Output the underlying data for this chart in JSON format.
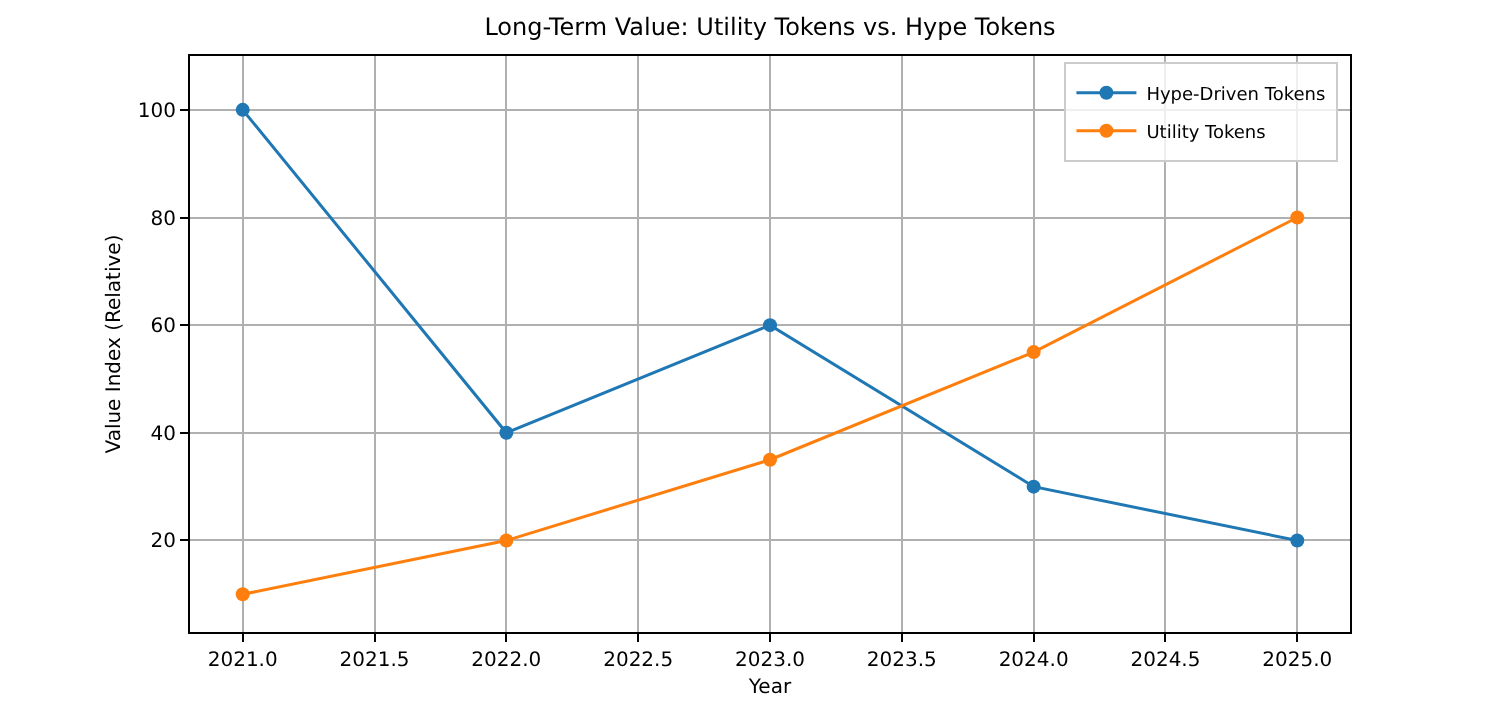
{
  "chart_data": {
    "type": "line",
    "title": "Long-Term Value: Utility Tokens vs. Hype Tokens",
    "xlabel": "Year",
    "ylabel": "Value Index (Relative)",
    "x": [
      2021,
      2022,
      2023,
      2024,
      2025
    ],
    "series": [
      {
        "name": "Hype-Driven Tokens",
        "color": "#1f77b4",
        "values": [
          100,
          40,
          60,
          30,
          20
        ]
      },
      {
        "name": "Utility Tokens",
        "color": "#ff7f0e",
        "values": [
          10,
          20,
          35,
          55,
          80
        ]
      }
    ],
    "xlim": [
      2020.8,
      2025.2
    ],
    "xticks": [
      {
        "value": 2021,
        "label": "2021.0"
      },
      {
        "value": 2021.5,
        "label": "2021.5"
      },
      {
        "value": 2022,
        "label": "2022.0"
      },
      {
        "value": 2022.5,
        "label": "2022.5"
      },
      {
        "value": 2023,
        "label": "2023.0"
      },
      {
        "value": 2023.5,
        "label": "2023.5"
      },
      {
        "value": 2024,
        "label": "2024.0"
      },
      {
        "value": 2024.5,
        "label": "2024.5"
      },
      {
        "value": 2025,
        "label": "2025.0"
      }
    ],
    "ylim": [
      3,
      110
    ],
    "yticks": [
      20,
      40,
      60,
      80,
      100
    ],
    "grid": true,
    "legend": "top right",
    "marker": "circle",
    "line_style": "solid"
  }
}
